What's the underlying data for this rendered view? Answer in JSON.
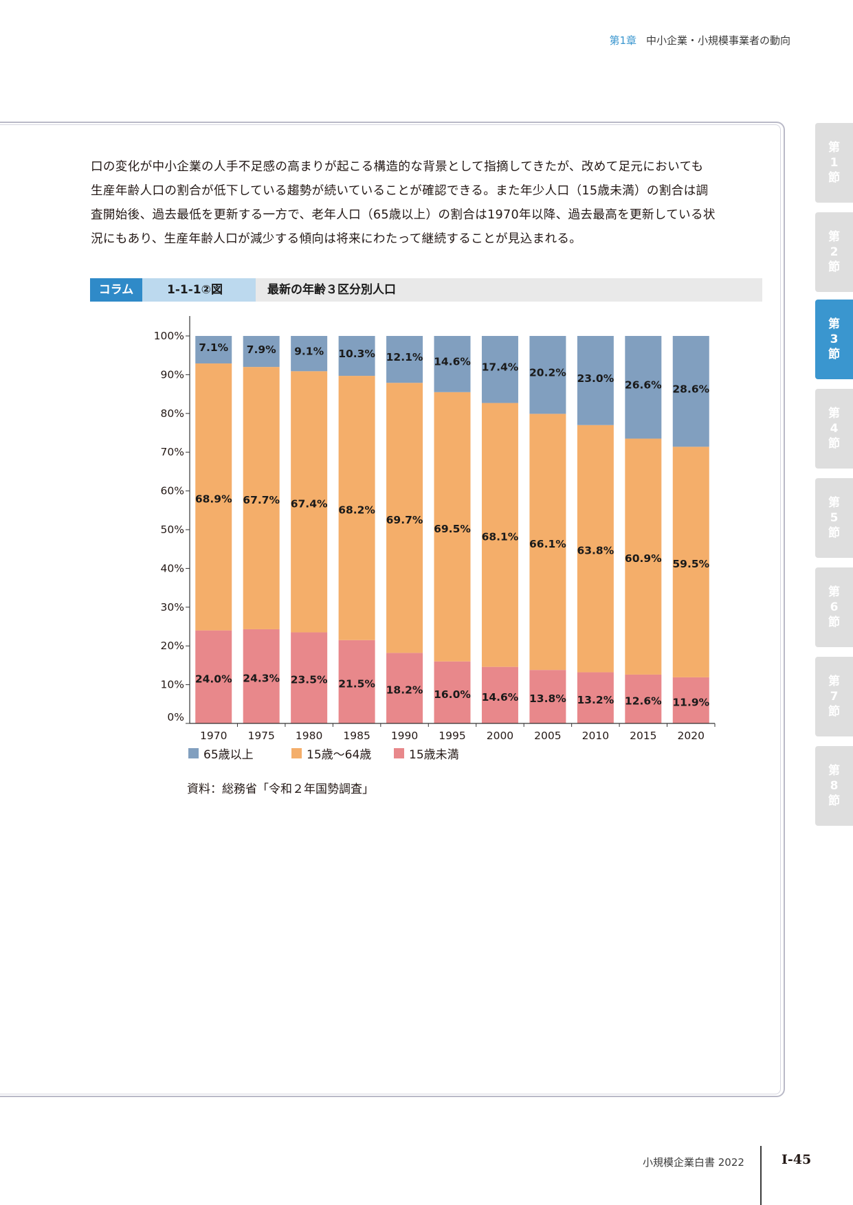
{
  "header": {
    "chapter": "第1章",
    "title": "中小企業・小規模事業者の動向"
  },
  "body_text": [
    "口の変化が中小企業の人手不足感の高まりが起こる構造的な背景として指摘してきたが、改めて足元においても",
    "生産年齢人口の割合が低下している趨勢が続いていることが確認できる。また年少人口（15歳未満）の割合は調",
    "査開始後、過去最低を更新する一方で、老年人口（65歳以上）の割合は1970年以降、過去最高を更新している状",
    "況にもあり、生産年齢人口が減少する傾向は将来にわたって継続することが見込まれる。"
  ],
  "figure": {
    "column_label": "コラム",
    "number": "1-1-1②図",
    "title": "最新の年齢３区分別人口"
  },
  "chart_data": {
    "type": "bar",
    "stacked": true,
    "categories": [
      "1970",
      "1975",
      "1980",
      "1985",
      "1990",
      "1995",
      "2000",
      "2005",
      "2010",
      "2015",
      "2020"
    ],
    "series": [
      {
        "name": "15歳未満",
        "color": "#e8888b",
        "values": [
          24.0,
          24.3,
          23.5,
          21.5,
          18.2,
          16.0,
          14.6,
          13.8,
          13.2,
          12.6,
          11.9
        ]
      },
      {
        "name": "15歳～64歳",
        "color": "#f4ae6a",
        "values": [
          68.9,
          67.7,
          67.4,
          68.2,
          69.7,
          69.5,
          68.1,
          66.1,
          63.8,
          60.9,
          59.5
        ]
      },
      {
        "name": "65歳以上",
        "color": "#819fbf",
        "values": [
          7.1,
          7.9,
          9.1,
          10.3,
          12.1,
          14.6,
          17.4,
          20.2,
          23.0,
          26.6,
          28.6
        ]
      }
    ],
    "legend_order": [
      "65歳以上",
      "15歳～64歳",
      "15歳未満"
    ],
    "y_ticks": [
      "0%",
      "10%",
      "20%",
      "30%",
      "40%",
      "50%",
      "60%",
      "70%",
      "80%",
      "90%",
      "100%"
    ],
    "ylim": [
      0,
      100
    ],
    "legend": "bottom-left"
  },
  "source": "資料：総務省「令和２年国勢調査」",
  "side_tabs": [
    {
      "chars": [
        "第",
        "1",
        "節"
      ],
      "active": false
    },
    {
      "chars": [
        "第",
        "2",
        "節"
      ],
      "active": false
    },
    {
      "chars": [
        "第",
        "3",
        "節"
      ],
      "active": true
    },
    {
      "chars": [
        "第",
        "4",
        "節"
      ],
      "active": false
    },
    {
      "chars": [
        "第",
        "5",
        "節"
      ],
      "active": false
    },
    {
      "chars": [
        "第",
        "6",
        "節"
      ],
      "active": false
    },
    {
      "chars": [
        "第",
        "7",
        "節"
      ],
      "active": false
    },
    {
      "chars": [
        "第",
        "8",
        "節"
      ],
      "active": false
    }
  ],
  "footer": {
    "book_title": "小規模企業白書 2022",
    "page": "Ⅰ-45"
  }
}
